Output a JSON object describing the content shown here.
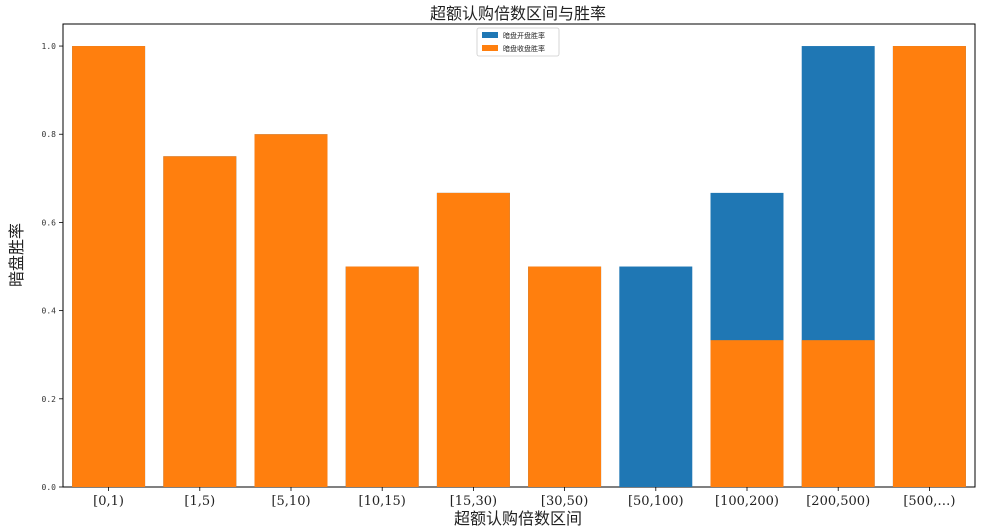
{
  "chart_data": {
    "type": "bar",
    "stacking": "overlay",
    "title": "超额认购倍数区间与胜率",
    "xlabel": "超额认购倍数区间",
    "ylabel": "暗盘胜率",
    "ylim": [
      0,
      1.05
    ],
    "yticks": [
      "0.0",
      "0.2",
      "0.4",
      "0.6",
      "0.8",
      "1.0"
    ],
    "legend": "top-center",
    "categories": [
      "[0,1)",
      "[1,5)",
      "[5,10)",
      "[10,15)",
      "[15,30)",
      "[30,50)",
      "[50,100)",
      "[100,200)",
      "[200,500)",
      "[500,…)"
    ],
    "series": [
      {
        "name": "暗盘开盘胜率",
        "color": "#1f77b4",
        "values": [
          1.0,
          0.75,
          0.8,
          0.5,
          0.667,
          0.5,
          0.5,
          0.667,
          1.0,
          1.0
        ]
      },
      {
        "name": "暗盘收盘胜率",
        "color": "#ff7f0e",
        "values": [
          1.0,
          0.75,
          0.8,
          0.5,
          0.667,
          0.5,
          0.0,
          0.333,
          0.333,
          1.0
        ]
      }
    ]
  }
}
